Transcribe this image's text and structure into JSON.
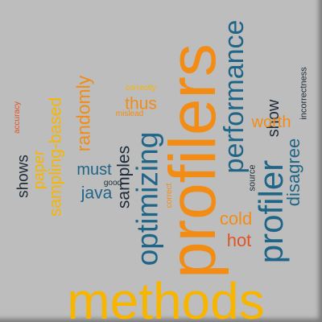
{
  "palette": {
    "background": "#bdbdbd",
    "orange": "#f28c14",
    "yellow": "#f7b500",
    "blue": "#1f6588",
    "dark": "#1d2b3a",
    "red": "#e05525"
  },
  "words": {
    "profilers": "profilers",
    "methods": "methods",
    "optimizing": "optimizing",
    "performance": "performance",
    "profiler": "profiler",
    "sampling_based": "sampling-based",
    "disagree": "disagree",
    "samples": "samples",
    "randomly": "randomly",
    "paper": "paper",
    "shows": "shows",
    "must": "must",
    "java": "java",
    "thus": "thus",
    "worth": "worth",
    "show": "show",
    "cold": "cold",
    "hot": "hot",
    "correctly": "correctly",
    "mislead": "mislead",
    "accuracy": "accuracy",
    "good": "good",
    "correct": "correct",
    "source": "source",
    "incorrectness": "incorrectness"
  }
}
